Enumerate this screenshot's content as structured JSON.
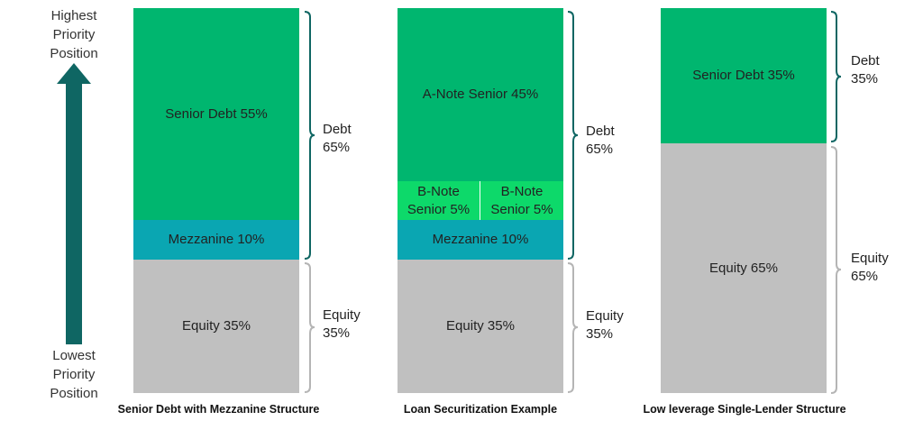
{
  "priority": {
    "top": [
      "Highest",
      "Priority",
      "Position"
    ],
    "bottom": [
      "Lowest",
      "Priority",
      "Position"
    ],
    "arrow_color": "#0f6663"
  },
  "colors": {
    "senior": "#00b66f",
    "bnote": "#0dd96a",
    "mezzanine": "#0aa6b2",
    "equity": "#c0c0c0",
    "bracket_debt": "#0f6663",
    "bracket_equity": "#b5b5b5"
  },
  "structures": [
    {
      "caption": "Senior Debt with Mezzanine Structure",
      "senior": "Senior Debt 55%",
      "mezzanine": "Mezzanine 10%",
      "equity": "Equity 35%",
      "debt_bracket": [
        "Debt",
        "65%"
      ],
      "equity_bracket": [
        "Equity",
        "35%"
      ]
    },
    {
      "caption": "Loan Securitization Example",
      "senior": "A-Note Senior 45%",
      "bnote_left": [
        "B-Note",
        "Senior 5%"
      ],
      "bnote_right": [
        "B-Note",
        "Senior 5%"
      ],
      "mezzanine": "Mezzanine 10%",
      "equity": "Equity 35%",
      "debt_bracket": [
        "Debt",
        "65%"
      ],
      "equity_bracket": [
        "Equity",
        "35%"
      ]
    },
    {
      "caption": "Low leverage Single-Lender Structure",
      "senior": "Senior Debt 35%",
      "equity": "Equity 65%",
      "debt_bracket": [
        "Debt",
        "35%"
      ],
      "equity_bracket": [
        "Equity",
        "65%"
      ]
    }
  ]
}
